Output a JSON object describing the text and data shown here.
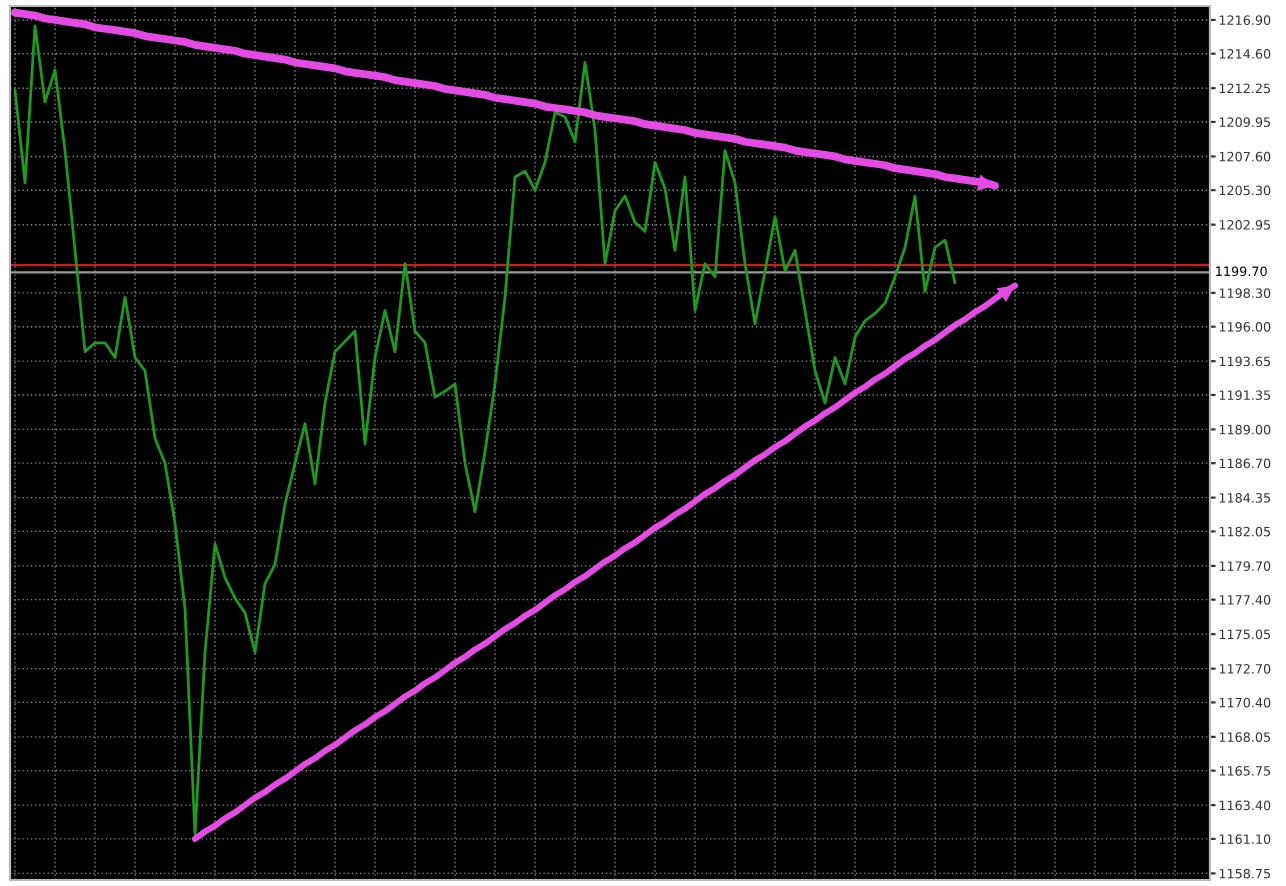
{
  "chart_data": {
    "type": "line",
    "categories": [
      null,
      null,
      null,
      null,
      null,
      null,
      null,
      null,
      null,
      null,
      null,
      null,
      null,
      null,
      null,
      null,
      null,
      null,
      null,
      null,
      null,
      null,
      null,
      null,
      null,
      null,
      null,
      null,
      null,
      null,
      null,
      null,
      null,
      null,
      null,
      null,
      null,
      null,
      null,
      null,
      null,
      null,
      null,
      null,
      null,
      null,
      null,
      null,
      null,
      null,
      null,
      null,
      null,
      null,
      null,
      null,
      null,
      null,
      null,
      null,
      null,
      null,
      null,
      null,
      null,
      null,
      null,
      null,
      null,
      null,
      null,
      null,
      null,
      null,
      null,
      null,
      null,
      null,
      null,
      null,
      null,
      null,
      null,
      null,
      null,
      null,
      null,
      null,
      null,
      null,
      null,
      null,
      null,
      null,
      null,
      null,
      null,
      null,
      null,
      null,
      null,
      null,
      null,
      null,
      null,
      null,
      null,
      null,
      null,
      null,
      null,
      null,
      null,
      null,
      null,
      null,
      null,
      null,
      null,
      null
    ],
    "series": [
      {
        "color": "#1f9a1f",
        "values": [
          1212.1,
          1205.8,
          1216.5,
          1211.3,
          1213.5,
          1208.0,
          1201.2,
          1194.3,
          1194.9,
          1194.9,
          1193.9,
          1198.0,
          1193.9,
          1193.0,
          1188.4,
          1186.7,
          1182.6,
          1176.8,
          1161.4,
          1173.8,
          1181.2,
          1178.9,
          1177.5,
          1176.5,
          1173.8,
          1178.5,
          1179.8,
          1183.9,
          1186.7,
          1189.4,
          1185.3,
          1190.8,
          1194.3,
          1195.0,
          1195.7,
          1188.0,
          1193.9,
          1197.1,
          1194.3,
          1200.3,
          1195.7,
          1194.9,
          1191.2,
          1191.6,
          1192.1,
          1186.7,
          1183.4,
          1187.5,
          1192.1,
          1198.0,
          1206.2,
          1206.6,
          1205.3,
          1207.2,
          1210.6,
          1210.3,
          1208.6,
          1214.0,
          1209.4,
          1200.3,
          1203.9,
          1204.9,
          1203.1,
          1202.5,
          1207.2,
          1205.4,
          1201.2,
          1206.2,
          1197.1,
          1200.3,
          1199.4,
          1208.0,
          1205.8,
          1200.3,
          1196.2,
          1199.8,
          1203.5,
          1199.8,
          1201.2,
          1197.1,
          1193.0,
          1190.8,
          1193.9,
          1192.1,
          1195.3,
          1196.4,
          1196.9,
          1197.6,
          1199.4,
          1201.4,
          1204.9,
          1198.4,
          1201.4,
          1201.9,
          1199.0,
          null,
          null,
          null,
          null,
          null,
          null,
          null,
          null,
          null,
          null,
          null,
          null,
          null,
          null,
          null,
          null,
          null,
          null,
          null,
          null,
          null,
          null,
          null,
          null,
          null
        ]
      },
      {
        "type": "line",
        "color": "#e44ae4",
        "values": [
          1217.4,
          1217.3,
          1217.2,
          1217.0,
          1216.9,
          1216.8,
          1216.7,
          1216.6,
          1216.4,
          1216.3,
          1216.2,
          1216.1,
          1216.0,
          1215.8,
          1215.7,
          1215.6,
          1215.5,
          1215.4,
          1215.2,
          1215.1,
          1215.0,
          1214.9,
          1214.8,
          1214.6,
          1214.5,
          1214.4,
          1214.3,
          1214.2,
          1214.0,
          1213.9,
          1213.8,
          1213.7,
          1213.6,
          1213.4,
          1213.3,
          1213.2,
          1213.1,
          1213.0,
          1212.8,
          1212.7,
          1212.6,
          1212.5,
          1212.4,
          1212.2,
          1212.1,
          1212.0,
          1211.9,
          1211.8,
          1211.6,
          1211.5,
          1211.4,
          1211.3,
          1211.2,
          1211.0,
          1210.9,
          1210.8,
          1210.7,
          1210.6,
          1210.4,
          1210.3,
          1210.2,
          1210.1,
          1210.0,
          1209.8,
          1209.7,
          1209.6,
          1209.5,
          1209.4,
          1209.2,
          1209.1,
          1209.0,
          1208.9,
          1208.8,
          1208.6,
          1208.5,
          1208.4,
          1208.3,
          1208.2,
          1208.0,
          1207.9,
          1207.8,
          1207.7,
          1207.6,
          1207.4,
          1207.3,
          1207.2,
          1207.1,
          1207.0,
          1206.8,
          1206.7,
          1206.6,
          1206.5,
          1206.4,
          1206.2,
          1206.1,
          1206.0,
          1205.9,
          1205.8,
          1205.6,
          null,
          null,
          null,
          null,
          null,
          null,
          null,
          null,
          null,
          null,
          null,
          null,
          null,
          null,
          null,
          null,
          null,
          null,
          null,
          null,
          null
        ]
      },
      {
        "type": "line",
        "color": "#e44ae4",
        "values": [
          null,
          null,
          null,
          null,
          null,
          null,
          null,
          null,
          null,
          null,
          null,
          null,
          null,
          null,
          null,
          null,
          null,
          null,
          1161.1,
          1161.6,
          1162.0,
          1162.5,
          1162.9,
          1163.4,
          1163.9,
          1164.3,
          1164.8,
          1165.2,
          1165.7,
          1166.2,
          1166.6,
          1167.1,
          1167.5,
          1168.0,
          1168.5,
          1168.9,
          1169.4,
          1169.8,
          1170.3,
          1170.8,
          1171.2,
          1171.7,
          1172.1,
          1172.6,
          1173.1,
          1173.5,
          1174.0,
          1174.4,
          1174.9,
          1175.4,
          1175.8,
          1176.3,
          1176.7,
          1177.2,
          1177.7,
          1178.1,
          1178.6,
          1179.0,
          1179.5,
          1180.0,
          1180.4,
          1180.9,
          1181.3,
          1181.8,
          1182.3,
          1182.7,
          1183.2,
          1183.6,
          1184.1,
          1184.6,
          1185.0,
          1185.5,
          1185.9,
          1186.4,
          1186.9,
          1187.3,
          1187.8,
          1188.2,
          1188.7,
          1189.2,
          1189.6,
          1190.1,
          1190.5,
          1191.0,
          1191.5,
          1191.9,
          1192.4,
          1192.8,
          1193.3,
          1193.8,
          1194.2,
          1194.7,
          1195.1,
          1195.6,
          1196.1,
          1196.5,
          1197.0,
          1197.4,
          1197.9,
          1198.4,
          1198.8,
          null,
          null,
          null,
          null,
          null,
          null,
          null,
          null,
          null,
          null,
          null,
          null,
          null,
          null,
          null,
          null,
          null,
          null,
          null
        ]
      }
    ],
    "ylim": [
      1158.3,
      1217.85
    ],
    "yticks": [
      {
        "value": 1216.9,
        "label": "1216.90"
      },
      {
        "value": 1214.6,
        "label": "1214.60"
      },
      {
        "value": 1212.25,
        "label": "1212.25"
      },
      {
        "value": 1209.95,
        "label": "1209.95"
      },
      {
        "value": 1207.6,
        "label": "1207.60"
      },
      {
        "value": 1205.3,
        "label": "1205.30"
      },
      {
        "value": 1202.95,
        "label": "1202.95"
      },
      {
        "value": 1198.3,
        "label": "1198.30"
      },
      {
        "value": 1196.0,
        "label": "1196.00"
      },
      {
        "value": 1193.65,
        "label": "1193.65"
      },
      {
        "value": 1191.35,
        "label": "1191.35"
      },
      {
        "value": 1189.0,
        "label": "1189.00"
      },
      {
        "value": 1186.7,
        "label": "1186.70"
      },
      {
        "value": 1184.35,
        "label": "1184.35"
      },
      {
        "value": 1182.05,
        "label": "1182.05"
      },
      {
        "value": 1179.7,
        "label": "1179.70"
      },
      {
        "value": 1177.4,
        "label": "1177.40"
      },
      {
        "value": 1175.05,
        "label": "1175.05"
      },
      {
        "value": 1172.7,
        "label": "1172.70"
      },
      {
        "value": 1170.4,
        "label": "1170.40"
      },
      {
        "value": 1168.05,
        "label": "1168.05"
      },
      {
        "value": 1165.75,
        "label": "1165.75"
      },
      {
        "value": 1163.4,
        "label": "1163.40"
      },
      {
        "value": 1161.1,
        "label": "1161.10"
      },
      {
        "value": 1158.75,
        "label": "1158.75"
      }
    ],
    "ref_lines": [
      {
        "axis": "y",
        "value": 1200.2,
        "color": "#c81e1e"
      },
      {
        "axis": "y",
        "value": 1199.7,
        "label": "1199.70",
        "color": "#9a9a9a"
      }
    ],
    "grid": true,
    "tick_labels": "y"
  }
}
